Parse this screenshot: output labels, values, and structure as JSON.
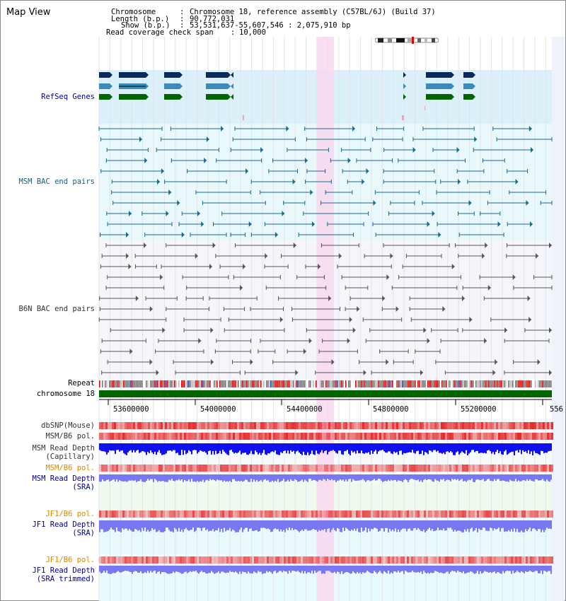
{
  "title": "Map View",
  "header": {
    "chromosome_key": "Chromosome",
    "chromosome_val": "Chromosome 18, reference assembly (C57BL/6J) (Build 37)",
    "length_key": "Length (b.p.)",
    "length_val": "90,772,031",
    "show_key": "Show (b.p.)",
    "show_val": "53,531,637-55,607,546 : 2,075,910 bp",
    "coverage_key": "Read coverage check span",
    "coverage_val": "10,000"
  },
  "tracks": {
    "refseq": "RefSeq Genes",
    "msm_bac": "MSM BAC end pairs",
    "b6n_bac": "B6N BAC end pairs",
    "repeat": "Repeat",
    "chromosome": "chromosome 18",
    "dbsnp": "dbSNP(Mouse)",
    "msm_b6_pol_1": "MSM/B6 pol.",
    "msm_depth_cap_1": "MSM Read Depth",
    "msm_depth_cap_2": "(Capillary)",
    "msm_b6_pol_2": "MSM/B6 pol.",
    "msm_depth_sra_1": "MSM Read Depth",
    "msm_depth_sra_2": "(SRA)",
    "jf1_b6_pol_1": "JF1/B6 pol.",
    "jf1_depth_sra_1": "JF1 Read Depth",
    "jf1_depth_sra_2": "(SRA)",
    "jf1_b6_pol_2": "JF1/B6 pol.",
    "jf1_depth_trim_1": "JF1 Read Depth",
    "jf1_depth_trim_2": "(SRA trimmed)"
  },
  "axis_ticks": [
    "53600000",
    "54000000",
    "54400000",
    "54800000",
    "55200000",
    "556"
  ],
  "colors": {
    "refseq_bg": "#dcf0fa",
    "msm_bg": "#e8f8fb",
    "b6n_bg": "#f4f6fb",
    "highlight": "#f9d8ef",
    "navy_gene": "#0a2a5a",
    "light_gene": "#3a8bb8",
    "green_gene": "#006400",
    "msm_pair": "#1a6a8a",
    "b6n_pair": "#555555",
    "chromosome_bar": "#006400",
    "depth_blue": "#1010ee",
    "depth_light": "#7878f0"
  }
}
